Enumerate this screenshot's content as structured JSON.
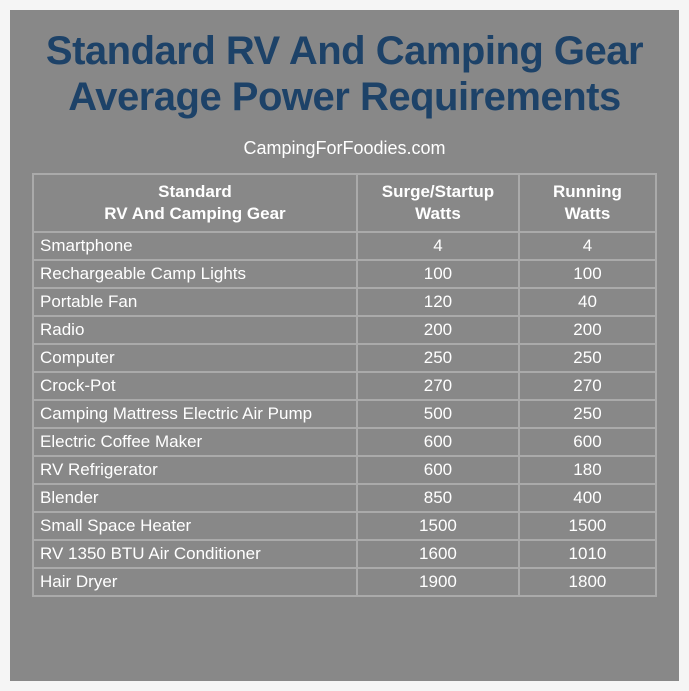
{
  "title_line1": "Standard RV And Camping Gear",
  "title_line2": "Average Power Requirements",
  "subtitle": "CampingForFoodies.com",
  "columns": {
    "col0_line1": "Standard",
    "col0_line2": "RV And Camping Gear",
    "col1_line1": "Surge/Startup",
    "col1_line2": "Watts",
    "col2_line1": "Running",
    "col2_line2": "Watts"
  },
  "column_widths": [
    "52%",
    "26%",
    "22%"
  ],
  "rows": [
    {
      "gear": "Smartphone",
      "surge": "4",
      "running": "4"
    },
    {
      "gear": "Rechargeable Camp Lights",
      "surge": "100",
      "running": "100"
    },
    {
      "gear": "Portable Fan",
      "surge": "120",
      "running": "40"
    },
    {
      "gear": "Radio",
      "surge": "200",
      "running": "200"
    },
    {
      "gear": "Computer",
      "surge": "250",
      "running": "250"
    },
    {
      "gear": "Crock-Pot",
      "surge": "270",
      "running": "270"
    },
    {
      "gear": "Camping Mattress Electric Air Pump",
      "surge": "500",
      "running": "250"
    },
    {
      "gear": "Electric Coffee Maker",
      "surge": "600",
      "running": "600"
    },
    {
      "gear": "RV Refrigerator",
      "surge": "600",
      "running": "180"
    },
    {
      "gear": "Blender",
      "surge": "850",
      "running": "400"
    },
    {
      "gear": "Small Space Heater",
      "surge": "1500",
      "running": "1500"
    },
    {
      "gear": "RV 1350 BTU Air Conditioner",
      "surge": "1600",
      "running": "1010"
    },
    {
      "gear": "Hair Dryer",
      "surge": "1900",
      "running": "1800"
    }
  ],
  "styling": {
    "card_bg": "#888888",
    "page_bg": "#f5f5f5",
    "title_color": "#1d4268",
    "text_color": "#ffffff",
    "border_color": "#aaaaaa",
    "title_fontsize": 40,
    "subtitle_fontsize": 18,
    "cell_fontsize": 17
  }
}
